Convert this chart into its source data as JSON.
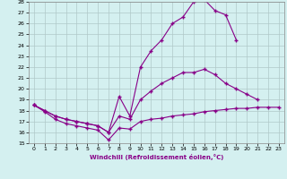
{
  "xlabel": "Windchill (Refroidissement éolien,°C)",
  "background_color": "#d4f0f0",
  "grid_color": "#b0c8c8",
  "line_color": "#880088",
  "line1_x": [
    0,
    1,
    2,
    3,
    4,
    5,
    6,
    7,
    8,
    9,
    10,
    11,
    12,
    13,
    14,
    15,
    16,
    17,
    18,
    19,
    20,
    21,
    22,
    23
  ],
  "line1_y": [
    18.5,
    17.9,
    17.2,
    16.8,
    16.6,
    16.4,
    16.2,
    15.3,
    16.4,
    16.3,
    17.0,
    17.2,
    17.3,
    17.5,
    17.6,
    17.7,
    17.9,
    18.0,
    18.1,
    18.2,
    18.2,
    18.3,
    18.3,
    18.3
  ],
  "line2_x": [
    0,
    1,
    2,
    3,
    4,
    5,
    6,
    7,
    8,
    9,
    10,
    11,
    12,
    13,
    14,
    15,
    16,
    17,
    18,
    19,
    20,
    21,
    22,
    23
  ],
  "line2_y": [
    18.5,
    18.0,
    17.5,
    17.2,
    17.0,
    16.8,
    16.6,
    16.0,
    17.5,
    17.2,
    19.0,
    19.8,
    20.5,
    21.0,
    21.5,
    21.5,
    21.8,
    21.3,
    20.5,
    20.0,
    19.5,
    19.0,
    null,
    null
  ],
  "line3_x": [
    0,
    1,
    2,
    3,
    4,
    5,
    6,
    7,
    8,
    9,
    10,
    11,
    12,
    13,
    14,
    15,
    16,
    17,
    18,
    19,
    20,
    21,
    22,
    23
  ],
  "line3_y": [
    18.5,
    18.0,
    17.5,
    17.2,
    17.0,
    16.8,
    16.6,
    16.0,
    19.3,
    17.5,
    22.0,
    23.5,
    24.5,
    26.0,
    26.6,
    28.0,
    28.2,
    27.2,
    26.8,
    24.5,
    null,
    null,
    null,
    null
  ],
  "ylim": [
    15,
    28
  ],
  "xlim": [
    -0.5,
    23.5
  ],
  "yticks": [
    15,
    16,
    17,
    18,
    19,
    20,
    21,
    22,
    23,
    24,
    25,
    26,
    27,
    28
  ],
  "xticks": [
    0,
    1,
    2,
    3,
    4,
    5,
    6,
    7,
    8,
    9,
    10,
    11,
    12,
    13,
    14,
    15,
    16,
    17,
    18,
    19,
    20,
    21,
    22,
    23
  ]
}
